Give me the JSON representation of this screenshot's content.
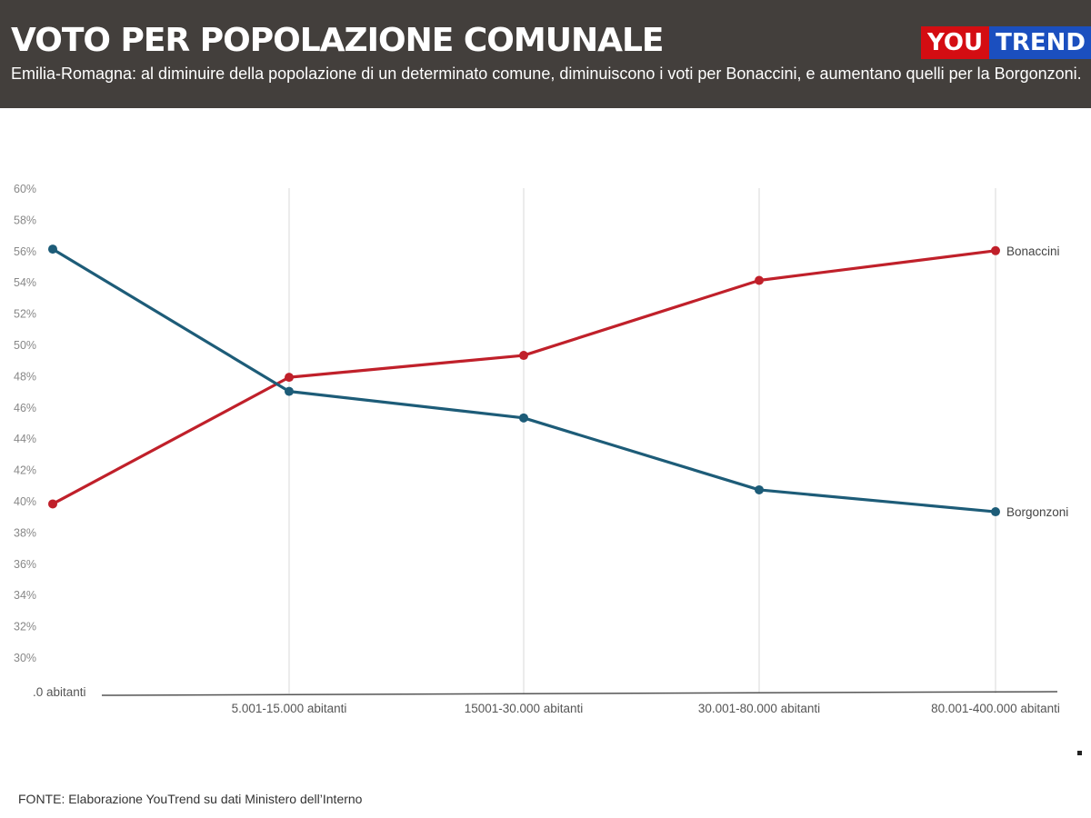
{
  "header": {
    "title": "VOTO PER POPOLAZIONE COMUNALE",
    "subtitle": "Emilia-Romagna: al diminuire della popolazione di un determinato comune, diminuiscono i voti per Bonaccini, e aumentano quelli per la Borgonzoni.",
    "logo": {
      "part1": "YOU",
      "part2": "TREND"
    }
  },
  "footer": {
    "source": "FONTE: Elaborazione YouTrend su dati Ministero dell’Interno"
  },
  "colors": {
    "bonaccini": "#c0202a",
    "borgonzoni": "#1d5c78",
    "header_bg": "#433f3c"
  },
  "chart_data": {
    "type": "line",
    "title": "VOTO PER POPOLAZIONE COMUNALE",
    "categories": [
      ".0 abitanti",
      "5.001-15.000 abitanti",
      "15001-30.000 abitanti",
      "30.001-80.000 abitanti",
      "80.001-400.000 abitanti"
    ],
    "series": [
      {
        "name": "Bonaccini",
        "values": [
          39.8,
          47.9,
          49.3,
          54.1,
          56.0
        ],
        "color": "#c0202a"
      },
      {
        "name": "Borgonzoni",
        "values": [
          56.1,
          47.0,
          45.3,
          40.7,
          39.3
        ],
        "color": "#1d5c78"
      }
    ],
    "yticks": [
      "60%",
      "58%",
      "56%",
      "54%",
      "52%",
      "50%",
      "48%",
      "46%",
      "44%",
      "42%",
      "40%",
      "38%",
      "36%",
      "34%",
      "32%",
      "30%"
    ],
    "ylim": [
      30,
      60
    ],
    "xlabel": "",
    "ylabel": "",
    "grid": "vertical",
    "legend": "inline-right"
  }
}
